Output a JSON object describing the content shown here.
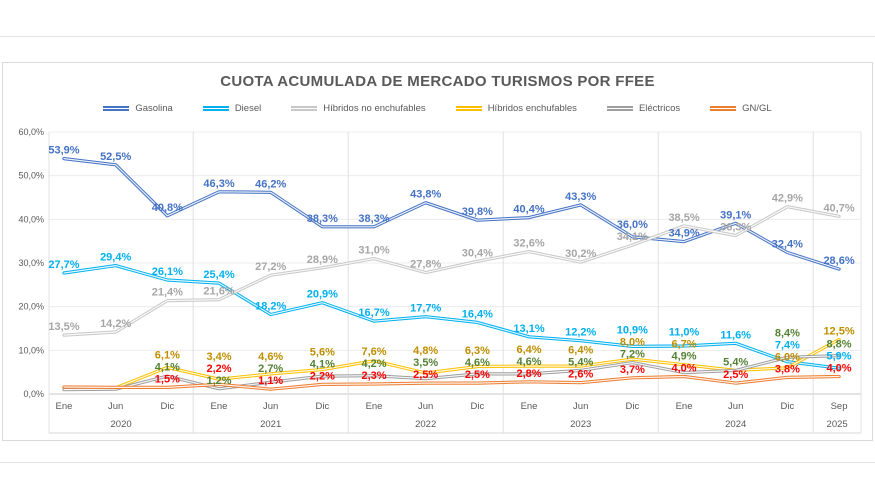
{
  "chart_data": {
    "type": "line",
    "title": "CUOTA ACUMULADA DE MERCADO TURISMOS POR FFEE",
    "ylim": [
      0,
      60
    ],
    "grid": true,
    "legend_position": "top",
    "y_tick_labels": [
      "0,0%",
      "10,0%",
      "20,0%",
      "30,0%",
      "40,0%",
      "50,0%",
      "60,0%"
    ],
    "x_tick_labels": [
      "Ene",
      "Jun",
      "Dic",
      "Ene",
      "Jun",
      "Dic",
      "Ene",
      "Jun",
      "Dic",
      "Ene",
      "Jun",
      "Dic",
      "Ene",
      "Jun",
      "Dic",
      "Sep"
    ],
    "year_groups": [
      {
        "label": "2020",
        "months": 3
      },
      {
        "label": "2021",
        "months": 3
      },
      {
        "label": "2022",
        "months": 3
      },
      {
        "label": "2023",
        "months": 3
      },
      {
        "label": "2024",
        "months": 3
      },
      {
        "label": "2025",
        "months": 1
      }
    ],
    "series": [
      {
        "name": "Gasolina",
        "line_color": "#4472C4",
        "label_color": "#4472C4",
        "values": [
          53.9,
          52.5,
          40.8,
          46.3,
          46.2,
          38.3,
          38.3,
          43.8,
          39.8,
          40.4,
          43.3,
          36.0,
          34.9,
          39.1,
          32.4,
          28.6
        ],
        "labels": [
          "53,9%",
          "52,5%",
          "40,8%",
          "46,3%",
          "46,2%",
          "38,3%",
          "38,3%",
          "43,8%",
          "39,8%",
          "40,4%",
          "43,3%",
          "36,0%",
          "34,9%",
          "39,1%",
          "32,4%",
          "28,6%"
        ]
      },
      {
        "name": "Diesel",
        "line_color": "#00B0F0",
        "label_color": "#00B0F0",
        "values": [
          27.7,
          29.4,
          26.1,
          25.4,
          18.2,
          20.9,
          16.7,
          17.7,
          16.4,
          13.1,
          12.2,
          10.9,
          11.0,
          11.6,
          7.4,
          5.9
        ],
        "labels": [
          "27,7%",
          "29,4%",
          "26,1%",
          "25,4%",
          "18,2%",
          "20,9%",
          "16,7%",
          "17,7%",
          "16,4%",
          "13,1%",
          "12,2%",
          "10,9%",
          "11,0%",
          "11,6%",
          "7,4%",
          "5,9%"
        ]
      },
      {
        "name": "Híbridos no enchufables",
        "line_color": "#C9C7C7",
        "label_color": "#A6A6A6",
        "values": [
          13.5,
          14.2,
          21.4,
          21.6,
          27.2,
          28.9,
          31.0,
          27.8,
          30.4,
          32.6,
          30.2,
          34.1,
          38.5,
          36.3,
          42.9,
          40.7
        ],
        "labels": [
          "13,5%",
          "14,2%",
          "21,4%",
          "21,6%",
          "27,2%",
          "28,9%",
          "31,0%",
          "27,8%",
          "30,4%",
          "32,6%",
          "30,2%",
          "34,1%",
          "38,5%",
          "36,3%",
          "42,9%",
          "40,7%"
        ]
      },
      {
        "name": "Híbridos enchufables",
        "line_color": "#FFC000",
        "label_color": "#BF8F00",
        "values": [
          1.3,
          1.4,
          6.1,
          3.4,
          4.6,
          5.6,
          7.6,
          4.8,
          6.3,
          6.4,
          6.4,
          8.0,
          6.7,
          5.4,
          6.0,
          12.5
        ],
        "labels": [
          null,
          null,
          "6,1%",
          "3,4%",
          "4,6%",
          "5,6%",
          "7,6%",
          "4,8%",
          "6,3%",
          "6,4%",
          "6,4%",
          "8,0%",
          "6,7%",
          null,
          "6,0%",
          "12,5%"
        ]
      },
      {
        "name": "Eléctricos",
        "line_color": "#9E9E9E",
        "label_color": "#548235",
        "values": [
          1.0,
          1.1,
          4.1,
          1.2,
          2.7,
          4.1,
          4.2,
          3.5,
          4.6,
          4.6,
          5.4,
          7.2,
          4.9,
          5.4,
          8.4,
          8.8
        ],
        "labels": [
          null,
          null,
          "4,1%",
          "1,2%",
          "2,7%",
          "4,1%",
          "4,2%",
          "3,5%",
          "4,6%",
          "4,6%",
          "5,4%",
          "7,2%",
          "4,9%",
          "5,4%",
          "8,4%",
          "8,8%"
        ]
      },
      {
        "name": "GN/GL",
        "line_color": "#ED7D31",
        "label_color": "#FF0000",
        "values": [
          1.6,
          1.5,
          1.5,
          2.2,
          1.1,
          2.2,
          2.3,
          2.5,
          2.5,
          2.8,
          2.6,
          3.7,
          4.0,
          2.5,
          3.8,
          4.0
        ],
        "labels": [
          null,
          null,
          "1,5%",
          "2,2%",
          "1,1%",
          "2,2%",
          "2,3%",
          "2,5%",
          "2,5%",
          "2,8%",
          "2,6%",
          "3,7%",
          "4,0%",
          "2,5%",
          "3,8%",
          "4,0%"
        ]
      }
    ]
  }
}
